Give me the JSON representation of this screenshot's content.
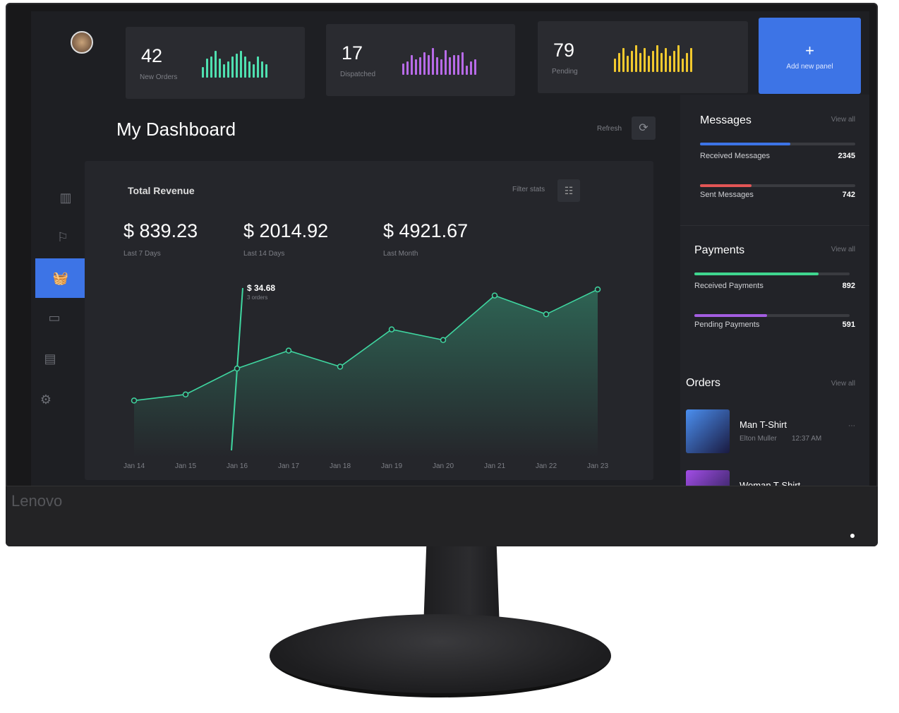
{
  "brand": "Lenovo",
  "stats": [
    {
      "value": "42",
      "label": "New Orders",
      "color": "#4fe0b0",
      "bars": [
        4,
        7,
        8,
        10,
        7,
        5,
        6,
        8,
        9,
        10,
        8,
        6,
        5,
        8,
        6,
        5
      ]
    },
    {
      "value": "17",
      "label": "Dispatched",
      "color": "#b86be8",
      "bars": [
        5,
        6,
        9,
        7,
        8,
        10,
        9,
        12,
        8,
        7,
        11,
        8,
        9,
        9,
        10,
        4,
        6,
        7
      ]
    },
    {
      "value": "79",
      "label": "Pending",
      "color": "#f2c92e",
      "bars": [
        5,
        7,
        9,
        6,
        8,
        10,
        7,
        9,
        6,
        8,
        10,
        7,
        9,
        6,
        8,
        10,
        5,
        7,
        9
      ]
    }
  ],
  "add_panel": {
    "icon": "plus-icon",
    "label": "Add new panel",
    "color": "#3d74e6"
  },
  "title": "My Dashboard",
  "refresh_label": "Refresh",
  "revenue": {
    "title": "Total Revenue",
    "filter_label": "Filter stats",
    "summaries": [
      {
        "value": "$ 839.23",
        "label": "Last 7 Days"
      },
      {
        "value": "$ 2014.92",
        "label": "Last 14 Days"
      },
      {
        "value": "$ 4921.67",
        "label": "Last Month"
      }
    ],
    "tooltip": {
      "value": "$ 34.68",
      "sub": "3 orders"
    }
  },
  "chart_data": {
    "type": "area",
    "categories": [
      "Jan 14",
      "Jan 15",
      "Jan 16",
      "Jan 17",
      "Jan 18",
      "Jan 19",
      "Jan 20",
      "Jan 21",
      "Jan 22",
      "Jan 23"
    ],
    "values": [
      20.5,
      23.2,
      34.68,
      42.6,
      35.5,
      52.0,
      47.3,
      67.0,
      58.7,
      69.7
    ],
    "color": "#3fd6a0",
    "highlight": "Jan 16",
    "grid": false
  },
  "messages": {
    "title": "Messages",
    "view_all": "View all",
    "items": [
      {
        "label": "Received Messages",
        "value": "2345",
        "fraction": 0.58,
        "color": "#3d74e6"
      },
      {
        "label": "Sent Messages",
        "value": "742",
        "fraction": 0.33,
        "color": "#e25555"
      }
    ]
  },
  "payments": {
    "title": "Payments",
    "view_all": "View all",
    "items": [
      {
        "label": "Received Payments",
        "value": "892",
        "fraction": 0.8,
        "color": "#3fd68f"
      },
      {
        "label": "Pending Payments",
        "value": "591",
        "fraction": 0.47,
        "color": "#a35de0"
      }
    ]
  },
  "orders": {
    "title": "Orders",
    "view_all": "View all",
    "items": [
      {
        "name": "Man T-Shirt",
        "customer": "Elton Muller",
        "time": "12:37 AM",
        "thumb": "#4b8ff0"
      },
      {
        "name": "Woman T-Shirt",
        "customer": "",
        "time": "",
        "thumb": "#a24de6"
      }
    ]
  }
}
